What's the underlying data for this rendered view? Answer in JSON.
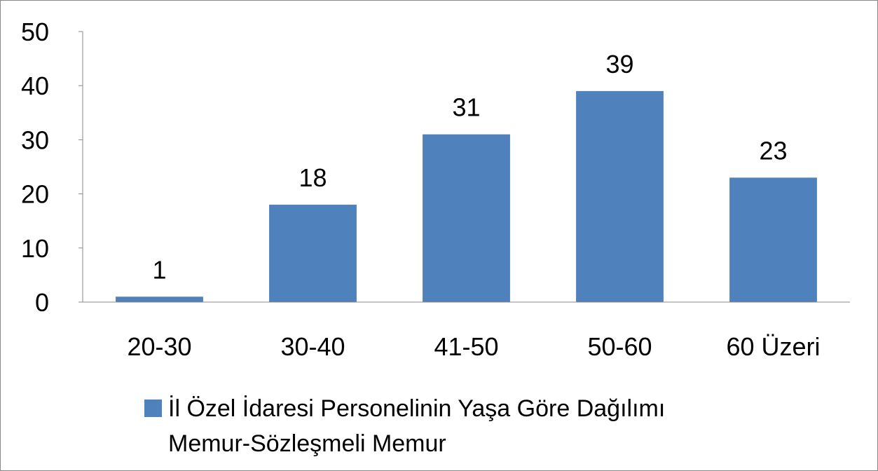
{
  "chart_data": {
    "type": "bar",
    "categories": [
      "20-30",
      "30-40",
      "41-50",
      "50-60",
      "60 Üzeri"
    ],
    "series": [
      {
        "name": "İl Özel İdaresi Personelinin Yaşa Göre Dağılımı Memur-Sözleşmeli Memur",
        "color": "#4f81bd",
        "values": [
          1,
          18,
          31,
          39,
          23
        ]
      }
    ],
    "ylim": [
      0,
      50
    ],
    "yticks": [
      0,
      10,
      20,
      30,
      40,
      50
    ],
    "grid": false,
    "legend": "bottom"
  }
}
